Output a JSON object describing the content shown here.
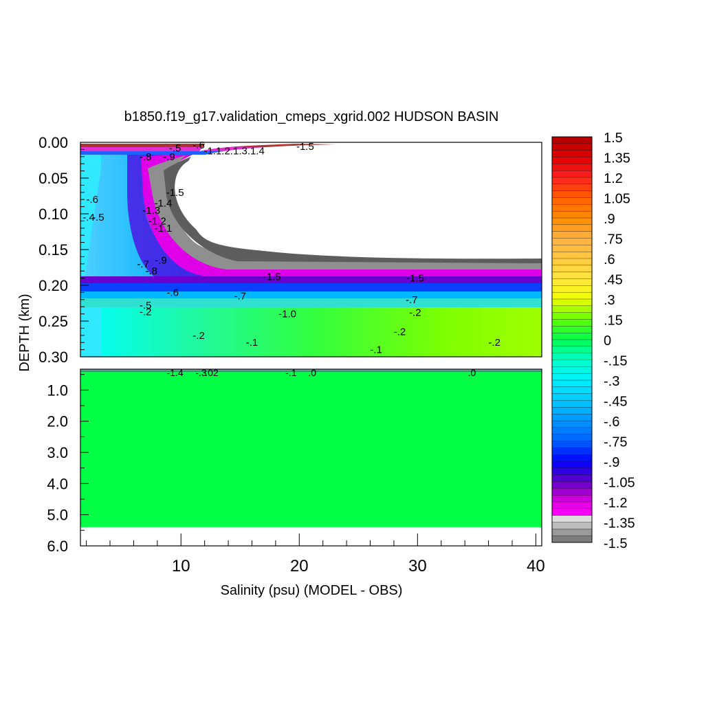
{
  "chart_data": {
    "type": "heatmap",
    "title": "b1850.f19_g17.validation_cmeps_xgrid.002 HUDSON BASIN",
    "xlabel": "Salinity (psu) (MODEL - OBS)",
    "ylabel": "DEPTH (km)",
    "xlim": [
      1.5,
      40.5
    ],
    "x_ticks": [
      "10",
      "20",
      "30",
      "40"
    ],
    "upper_panel": {
      "ylim": [
        0.0,
        0.3
      ],
      "y_ticks": [
        "0.00",
        "0.05",
        "0.10",
        "0.15",
        "0.20",
        "0.25",
        "0.30"
      ]
    },
    "lower_panel": {
      "ylim": [
        0.33,
        6.0
      ],
      "y_ticks": [
        "1.0",
        "2.0",
        "3.0",
        "4.0",
        "5.0",
        "6.0"
      ],
      "fill_value": 0.0,
      "data_bottom_depth": 5.4
    },
    "colorbar": {
      "min": -1.5,
      "max": 1.5,
      "step": 0.05,
      "labels": [
        "1.5",
        "1.35",
        "1.2",
        "1.05",
        ".9",
        ".75",
        ".6",
        ".45",
        ".3",
        ".15",
        "0",
        "-.15",
        "-.3",
        "-.45",
        "-.6",
        "-.75",
        "-.9",
        "-1.05",
        "-1.2",
        "-1.35",
        "-1.5"
      ]
    },
    "contour_labels": [
      {
        "text": "-.5",
        "x": 9.5,
        "depth": 0.008
      },
      {
        "text": "-.6",
        "x": 11.5,
        "depth": 0.004
      },
      {
        "text": "-.8",
        "x": 7.0,
        "depth": 0.02
      },
      {
        "text": "-.9",
        "x": 9.0,
        "depth": 0.02
      },
      {
        "text": "-1.1.2.1.3.1.4",
        "x": 14.5,
        "depth": 0.012
      },
      {
        "text": "-1.5",
        "x": 20.5,
        "depth": 0.006
      },
      {
        "text": "-1.5",
        "x": 9.5,
        "depth": 0.07
      },
      {
        "text": "-1.4",
        "x": 8.5,
        "depth": 0.085
      },
      {
        "text": "-1.3",
        "x": 7.5,
        "depth": 0.095
      },
      {
        "text": "-1.2",
        "x": 8.0,
        "depth": 0.11
      },
      {
        "text": "-1.1",
        "x": 8.5,
        "depth": 0.12
      },
      {
        "text": "-.6",
        "x": 2.5,
        "depth": 0.08
      },
      {
        "text": "-.5",
        "x": 3.0,
        "depth": 0.105
      },
      {
        "text": "-.4",
        "x": 2.2,
        "depth": 0.105
      },
      {
        "text": "-.7",
        "x": 6.8,
        "depth": 0.17
      },
      {
        "text": "-.8",
        "x": 7.5,
        "depth": 0.18
      },
      {
        "text": "-.9",
        "x": 8.3,
        "depth": 0.165
      },
      {
        "text": "-.6",
        "x": 9.3,
        "depth": 0.21
      },
      {
        "text": "-.7",
        "x": 15.0,
        "depth": 0.215
      },
      {
        "text": "-1.5",
        "x": 17.7,
        "depth": 0.188
      },
      {
        "text": "-.5",
        "x": 7.0,
        "depth": 0.228
      },
      {
        "text": "-.2",
        "x": 7.0,
        "depth": 0.237
      },
      {
        "text": "-1.0",
        "x": 19.0,
        "depth": 0.24
      },
      {
        "text": "-1.5",
        "x": 29.8,
        "depth": 0.19
      },
      {
        "text": "-.7",
        "x": 29.5,
        "depth": 0.22
      },
      {
        "text": "-.2",
        "x": 29.8,
        "depth": 0.238
      },
      {
        "text": "-.2",
        "x": 11.5,
        "depth": 0.27
      },
      {
        "text": "-.1",
        "x": 16.0,
        "depth": 0.28
      },
      {
        "text": "-.1",
        "x": 26.5,
        "depth": 0.29
      },
      {
        "text": "-.2",
        "x": 28.5,
        "depth": 0.265
      },
      {
        "text": "-.2",
        "x": 36.5,
        "depth": 0.28
      }
    ],
    "lower_contour_labels": [
      {
        "text": "-1.4",
        "x": 9.5
      },
      {
        "text": "-.3",
        "x": 11.7
      },
      {
        "text": ".02",
        "x": 12.6
      },
      {
        "text": "-.1",
        "x": 19.3
      },
      {
        "text": ".0",
        "x": 21.1
      },
      {
        "text": ".0",
        "x": 34.6
      }
    ]
  }
}
